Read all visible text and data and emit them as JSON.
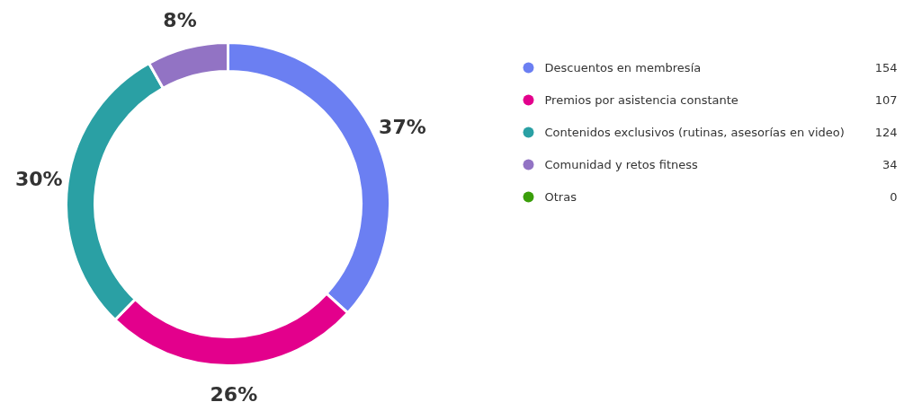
{
  "chart_data": {
    "type": "donut",
    "categories": [
      "Descuentos en membresía",
      "Premios por asistencia constante",
      "Contenidos exclusivos (rutinas, asesorías en video)",
      "Comunidad y retos fitness",
      "Otras"
    ],
    "values": [
      154,
      107,
      124,
      34,
      0
    ],
    "value_labels": [
      "154",
      "107",
      "124",
      "34",
      "0"
    ],
    "annotations": [
      {
        "text": "37%",
        "x": "Descuentos en membresía"
      },
      {
        "text": "26%",
        "x": "Premios por asistencia constante"
      },
      {
        "text": "30%",
        "x": "Contenidos exclusivos (rutinas, asesorías en video)"
      },
      {
        "text": "8%",
        "x": "Comunidad y retos fitness"
      }
    ],
    "colors": [
      "#6b7ff2",
      "#e3008c",
      "#2aa0a4",
      "#9273c4",
      "#3a9e0a"
    ],
    "legend": "right"
  }
}
